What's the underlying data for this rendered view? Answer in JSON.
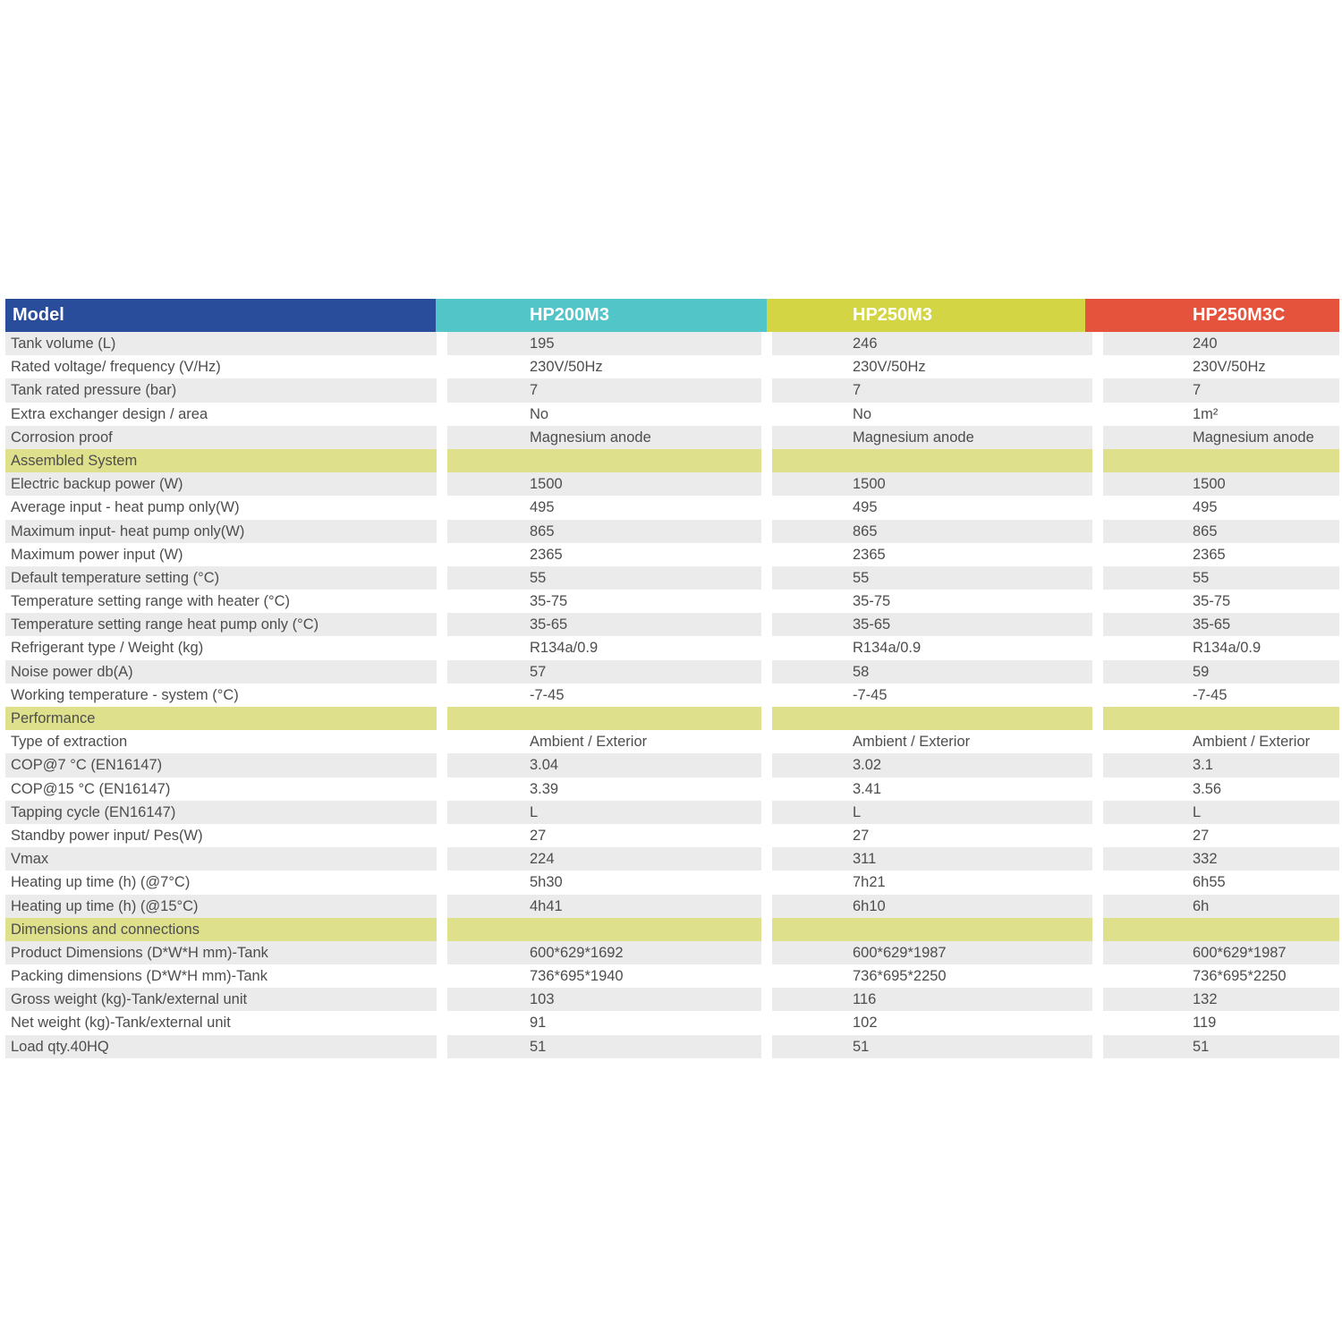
{
  "table": {
    "header": {
      "model_label": "Model",
      "model_bg": "#2a4d9b",
      "columns": [
        {
          "label": "HP200M3",
          "bg": "#52c5c8"
        },
        {
          "label": "HP250M3",
          "bg": "#d3d544"
        },
        {
          "label": "HP250M3C",
          "bg": "#e6533c"
        }
      ]
    },
    "colors": {
      "section_bg": "#dfe08c",
      "stripe_gray": "#ebebeb",
      "stripe_white": "#ffffff",
      "text": "#4d4d4f"
    },
    "rows": [
      {
        "kind": "data",
        "shade": "gray",
        "label": "Tank volume (L)",
        "values": [
          "195",
          "246",
          "240"
        ]
      },
      {
        "kind": "data",
        "shade": "white",
        "label": "Rated voltage/ frequency (V/Hz)",
        "values": [
          "230V/50Hz",
          "230V/50Hz",
          "230V/50Hz"
        ]
      },
      {
        "kind": "data",
        "shade": "gray",
        "label": "Tank rated pressure (bar)",
        "values": [
          "7",
          "7",
          "7"
        ]
      },
      {
        "kind": "data",
        "shade": "white",
        "label": "Extra exchanger design / area",
        "values": [
          "No",
          "No",
          "1m²"
        ]
      },
      {
        "kind": "data",
        "shade": "gray",
        "label": "Corrosion proof",
        "values": [
          "Magnesium anode",
          "Magnesium anode",
          "Magnesium anode"
        ]
      },
      {
        "kind": "section",
        "label": "Assembled System"
      },
      {
        "kind": "data",
        "shade": "gray",
        "label": "Electric backup power (W)",
        "values": [
          "1500",
          "1500",
          "1500"
        ]
      },
      {
        "kind": "data",
        "shade": "white",
        "label": "Average input - heat pump only(W)",
        "values": [
          "495",
          "495",
          "495"
        ]
      },
      {
        "kind": "data",
        "shade": "gray",
        "label": "Maximum input- heat pump only(W)",
        "values": [
          "865",
          "865",
          "865"
        ]
      },
      {
        "kind": "data",
        "shade": "white",
        "label": "Maximum power input  (W)",
        "values": [
          "2365",
          "2365",
          "2365"
        ]
      },
      {
        "kind": "data",
        "shade": "gray",
        "label": "Default temperature setting (°C)",
        "values": [
          "55",
          "55",
          "55"
        ]
      },
      {
        "kind": "data",
        "shade": "white",
        "label": "Temperature setting range with heater (°C)",
        "values": [
          "35-75",
          "35-75",
          "35-75"
        ]
      },
      {
        "kind": "data",
        "shade": "gray",
        "label": "Temperature setting range heat pump only (°C)",
        "values": [
          "35-65",
          "35-65",
          "35-65"
        ]
      },
      {
        "kind": "data",
        "shade": "white",
        "label": "Refrigerant type / Weight (kg)",
        "values": [
          "R134a/0.9",
          "R134a/0.9",
          "R134a/0.9"
        ]
      },
      {
        "kind": "data",
        "shade": "gray",
        "label": "Noise power db(A)",
        "values": [
          "57",
          "58",
          "59"
        ]
      },
      {
        "kind": "data",
        "shade": "white",
        "label": "Working temperature - system (°C)",
        "values": [
          "-7-45",
          "-7-45",
          "-7-45"
        ]
      },
      {
        "kind": "section",
        "label": "Performance"
      },
      {
        "kind": "data",
        "shade": "white",
        "label": "Type of extraction",
        "values": [
          "Ambient / Exterior",
          "Ambient / Exterior",
          "Ambient / Exterior"
        ]
      },
      {
        "kind": "data",
        "shade": "gray",
        "label": "COP@7 °C (EN16147)",
        "values": [
          "3.04",
          "3.02",
          "3.1"
        ]
      },
      {
        "kind": "data",
        "shade": "white",
        "label": "COP@15 °C (EN16147)",
        "values": [
          "3.39",
          "3.41",
          "3.56"
        ]
      },
      {
        "kind": "data",
        "shade": "gray",
        "label": "Tapping cycle (EN16147)",
        "values": [
          "L",
          "L",
          "L"
        ]
      },
      {
        "kind": "data",
        "shade": "white",
        "label": "Standby power input/ Pes(W)",
        "values": [
          "27",
          "27",
          "27"
        ]
      },
      {
        "kind": "data",
        "shade": "gray",
        "label": "Vmax",
        "values": [
          "224",
          "311",
          "332"
        ]
      },
      {
        "kind": "data",
        "shade": "white",
        "label": "Heating up time  (h)  (@7°C)",
        "values": [
          "5h30",
          "7h21",
          "6h55"
        ]
      },
      {
        "kind": "data",
        "shade": "gray",
        "label": "Heating up time  (h)  (@15°C)",
        "values": [
          "4h41",
          "6h10",
          "6h"
        ]
      },
      {
        "kind": "section",
        "label": "Dimensions and connections"
      },
      {
        "kind": "data",
        "shade": "gray",
        "label": "Product Dimensions (D*W*H mm)-Tank",
        "values": [
          "600*629*1692",
          "600*629*1987",
          "600*629*1987"
        ]
      },
      {
        "kind": "data",
        "shade": "white",
        "label": "Packing dimensions (D*W*H mm)-Tank",
        "values": [
          "736*695*1940",
          "736*695*2250",
          "736*695*2250"
        ]
      },
      {
        "kind": "data",
        "shade": "gray",
        "label": "Gross weight (kg)-Tank/external unit",
        "values": [
          "103",
          "116",
          "132"
        ]
      },
      {
        "kind": "data",
        "shade": "white",
        "label": "Net weight (kg)-Tank/external unit",
        "values": [
          "91",
          "102",
          "119"
        ]
      },
      {
        "kind": "data",
        "shade": "gray",
        "label": "Load qty.40HQ",
        "values": [
          "51",
          "51",
          "51"
        ]
      }
    ]
  }
}
